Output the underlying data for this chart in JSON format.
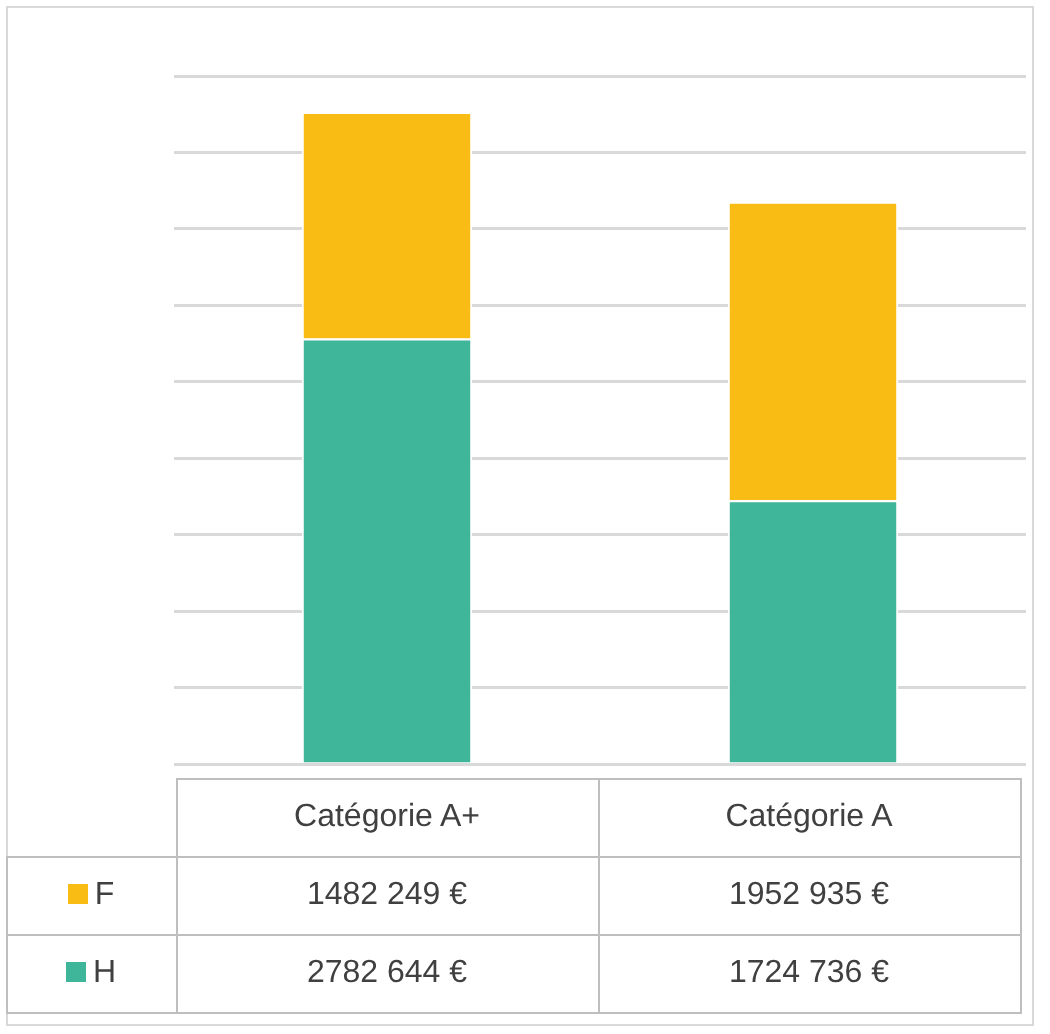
{
  "chart_data": {
    "type": "bar",
    "stacked": true,
    "categories": [
      "Catégorie A+",
      "Catégorie A"
    ],
    "series": [
      {
        "name": "H",
        "color": "#3fb599",
        "values": [
          2782644,
          1724736
        ],
        "value_labels": [
          "2782 644 €",
          "1724 736 €"
        ]
      },
      {
        "name": "F",
        "color": "#f9bc15",
        "values": [
          1482249,
          1952935
        ],
        "value_labels": [
          "1482 249 €",
          "1952 935 €"
        ]
      }
    ],
    "ylim": [
      0,
      4500000
    ],
    "yticks": [
      {
        "value": 0,
        "label": null
      },
      {
        "value": 500000,
        "label": null
      },
      {
        "value": 1000000,
        "label": null
      },
      {
        "value": 1500000,
        "label": null
      },
      {
        "value": 2000000,
        "label": null
      },
      {
        "value": 2500000,
        "label": null
      },
      {
        "value": 3000000,
        "label": null
      },
      {
        "value": 3500000,
        "label": null
      },
      {
        "value": 4000000,
        "label": null
      },
      {
        "value": 4500000,
        "label": null
      }
    ],
    "grid": "y",
    "legend": "bottom left"
  }
}
